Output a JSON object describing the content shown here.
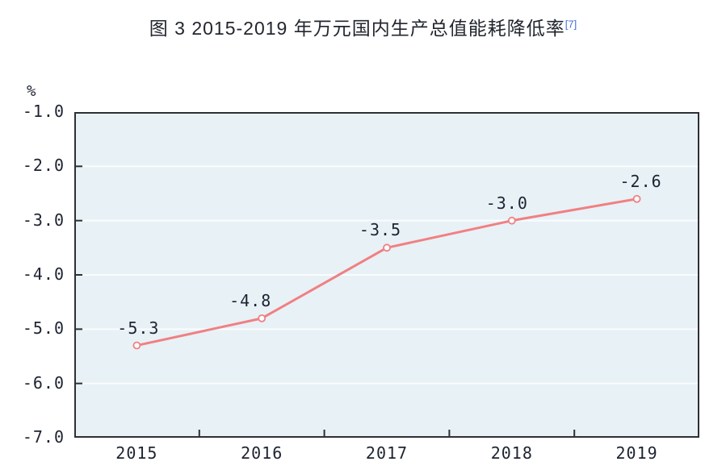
{
  "figure": {
    "title_text": "图 3  2015-2019 年万元国内生产总值能耗降低率",
    "footnote_ref": "[7]"
  },
  "chart_data": {
    "type": "line",
    "title": "图 3 2015-2019 年万元国内生产总值能耗降低率",
    "unit_label": "%",
    "categories": [
      "2015",
      "2016",
      "2017",
      "2018",
      "2019"
    ],
    "values": [
      -5.3,
      -4.8,
      -3.5,
      -3.0,
      -2.6
    ],
    "point_labels": [
      "-5.3",
      "-4.8",
      "-3.5",
      "-3.0",
      "-2.6"
    ],
    "label_dx": [
      2,
      -14,
      -8,
      -6,
      5
    ],
    "y_ticks": [
      -1.0,
      -2.0,
      -3.0,
      -4.0,
      -5.0,
      -6.0,
      -7.0
    ],
    "y_tick_labels": [
      "-1.0",
      "-2.0",
      "-3.0",
      "-4.0",
      "-5.0",
      "-6.0",
      "-7.0"
    ],
    "ylim": [
      -7.0,
      -1.0
    ],
    "xlabel": "",
    "ylabel": "%",
    "grid": true,
    "legend": "none",
    "colors": {
      "line": "#f08083",
      "marker_fill": "#ffffff",
      "plot_bg": "#e8f1f6",
      "grid": "#fafdfe",
      "axis": "#2f3033",
      "text": "#1d2330",
      "footnote": "#4a72d9"
    }
  }
}
